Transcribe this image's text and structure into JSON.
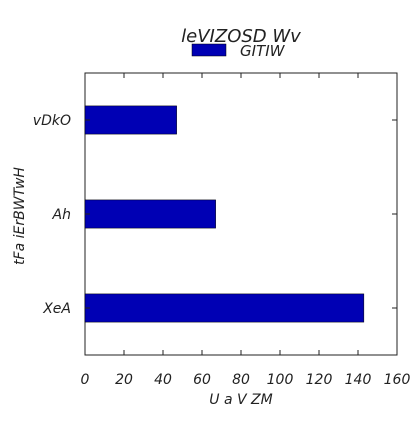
{
  "chart_data": {
    "type": "bar",
    "orientation": "horizontal",
    "title": "leVIZOSD Wv",
    "xlabel": "U a V   ZM",
    "ylabel": "tFa iErBWTwH",
    "categories": [
      "vDkO",
      "Ah",
      "XeA"
    ],
    "series": [
      {
        "name": "GITIW",
        "values": [
          47,
          67,
          143
        ],
        "color": "#0000b4"
      }
    ],
    "xlim": [
      0,
      160
    ],
    "xticks": [
      0,
      20,
      40,
      60,
      80,
      100,
      120,
      140,
      160
    ],
    "grid": false,
    "legend_position": "top-center"
  }
}
